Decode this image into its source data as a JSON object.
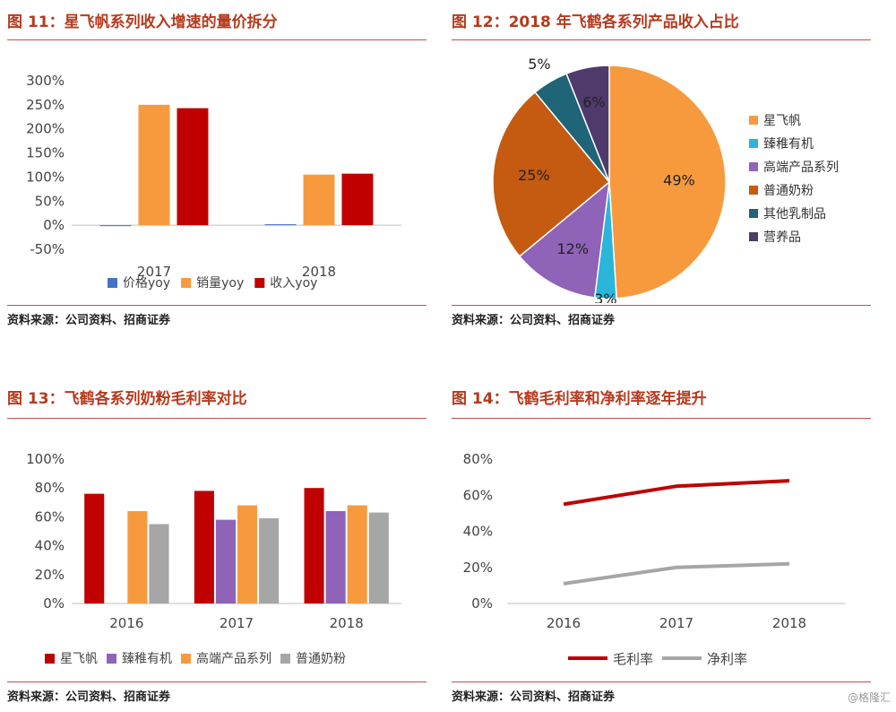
{
  "panels": {
    "p11": {
      "title": "图 11：星飞帆系列收入增速的量价拆分",
      "source": "资料来源：公司资料、招商证券"
    },
    "p12": {
      "title": "图 12：2018 年飞鹤各系列产品收入占比",
      "source": "资料来源：公司资料、招商证券"
    },
    "p13": {
      "title": "图 13：飞鹤各系列奶粉毛利率对比",
      "source": "资料来源：公司资料、招商证券"
    },
    "p14": {
      "title": "图 14：飞鹤毛利率和净利率逐年提升",
      "source": "资料来源：公司资料、招商证券"
    }
  },
  "watermark": "@格隆汇",
  "chart_data": [
    {
      "id": "p11",
      "type": "bar",
      "categories": [
        "2017",
        "2018"
      ],
      "series": [
        {
          "name": "价格yoy",
          "color": "#4472c4",
          "values": [
            0,
            2
          ]
        },
        {
          "name": "销量yoy",
          "color": "#f79a3e",
          "values": [
            250,
            105
          ]
        },
        {
          "name": "收入yoy",
          "color": "#c00000",
          "values": [
            243,
            107
          ]
        }
      ],
      "ylim": [
        -50,
        300
      ],
      "yticks": [
        "-50%",
        "0%",
        "50%",
        "100%",
        "150%",
        "200%",
        "250%",
        "300%"
      ],
      "ytick_values": [
        -50,
        0,
        50,
        100,
        150,
        200,
        250,
        300
      ],
      "legend": "bottom"
    },
    {
      "id": "p12",
      "type": "pie",
      "slices": [
        {
          "name": "星飞帆",
          "value": 49,
          "label": "49%",
          "color": "#f79a3e"
        },
        {
          "name": "臻稚有机",
          "value": 3,
          "label": "3%",
          "color": "#2bb5d8"
        },
        {
          "name": "高端产品系列",
          "value": 12,
          "label": "12%",
          "color": "#8e63b8"
        },
        {
          "name": "普通奶粉",
          "value": 25,
          "label": "25%",
          "color": "#c55a11"
        },
        {
          "name": "其他乳制品",
          "value": 5,
          "label": "5%",
          "color": "#1f6477"
        },
        {
          "name": "营养品",
          "value": 6,
          "label": "6%",
          "color": "#4f3a6b"
        }
      ],
      "legend": "right"
    },
    {
      "id": "p13",
      "type": "bar",
      "categories": [
        "2016",
        "2017",
        "2018"
      ],
      "series": [
        {
          "name": "星飞帆",
          "color": "#c00000",
          "values": [
            76,
            78,
            80
          ]
        },
        {
          "name": "臻稚有机",
          "color": "#8e63b8",
          "values": [
            null,
            58,
            64
          ]
        },
        {
          "name": "高端产品系列",
          "color": "#f79a3e",
          "values": [
            64,
            68,
            68
          ]
        },
        {
          "name": "普通奶粉",
          "color": "#a6a6a6",
          "values": [
            55,
            59,
            63
          ]
        }
      ],
      "ylim": [
        0,
        100
      ],
      "yticks": [
        "0%",
        "20%",
        "40%",
        "60%",
        "80%",
        "100%"
      ],
      "ytick_values": [
        0,
        20,
        40,
        60,
        80,
        100
      ],
      "legend": "bottom"
    },
    {
      "id": "p14",
      "type": "line",
      "categories": [
        "2016",
        "2017",
        "2018"
      ],
      "series": [
        {
          "name": "毛利率",
          "color": "#c00000",
          "values": [
            55,
            65,
            68
          ]
        },
        {
          "name": "净利率",
          "color": "#a6a6a6",
          "values": [
            11,
            20,
            22
          ]
        }
      ],
      "ylim": [
        0,
        80
      ],
      "yticks": [
        "0%",
        "20%",
        "40%",
        "60%",
        "80%"
      ],
      "ytick_values": [
        0,
        20,
        40,
        60,
        80
      ],
      "legend": "bottom"
    }
  ]
}
